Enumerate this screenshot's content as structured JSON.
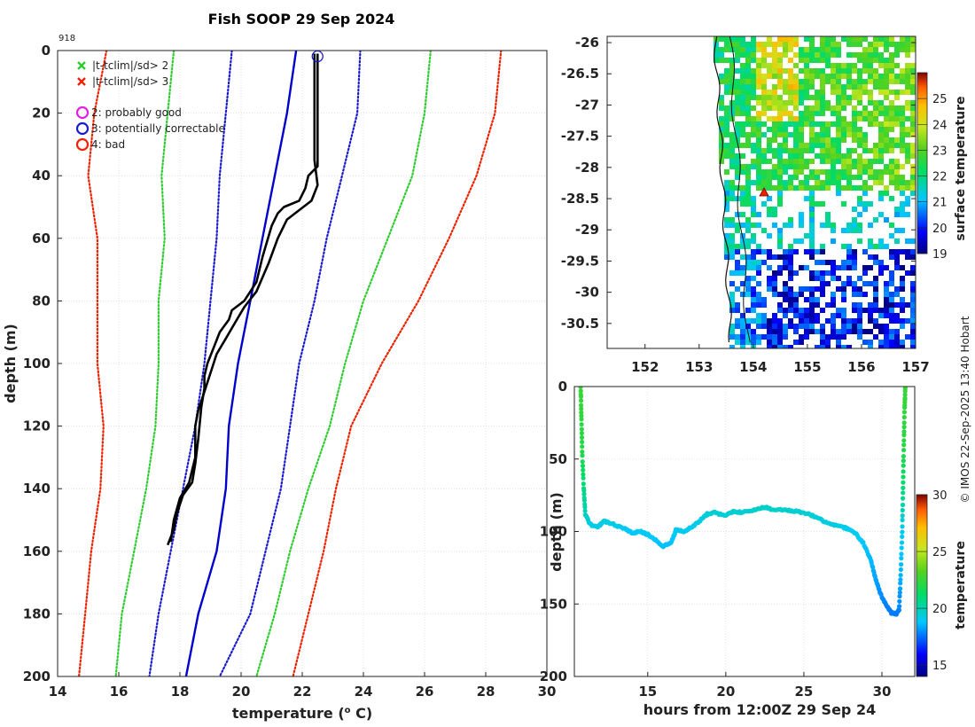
{
  "title": "Fish SOOP 29 Sep 2024",
  "profile_id": "918",
  "credit": "© IMOS 22-Sep-2025 13:40 Hobart",
  "legend": {
    "x_green": "|t-tclim|/sd> 2",
    "x_red": "|t-tclim|/sd> 3",
    "c_magenta": "2: probably good",
    "c_blue": "3: potentially correctable",
    "c_red": "4: bad"
  },
  "colors": {
    "sd2": "#2ecc2e",
    "sd3": "#ee2200",
    "clim": "#0000cc",
    "profile": "#000000",
    "qc_marker": "#1a1ad0",
    "float_marker": "#ee2200"
  },
  "chart_data": [
    {
      "id": "profile",
      "type": "line",
      "title": "Fish SOOP 29 Sep 2024",
      "xlabel": "temperature (",
      "xlabel_unit": "o",
      "xlabel_end": " C)",
      "ylabel": "depth (m)",
      "xlim": [
        14,
        30
      ],
      "ylim": [
        0,
        200
      ],
      "y_reversed": true,
      "xticks": [
        14,
        16,
        18,
        20,
        22,
        24,
        26,
        28,
        30
      ],
      "yticks": [
        0,
        20,
        40,
        60,
        80,
        100,
        120,
        140,
        160,
        180,
        200
      ],
      "series": [
        {
          "name": "clim -3sd",
          "style": "dotted",
          "color": "#ee2200",
          "points": [
            [
              15.6,
              0
            ],
            [
              15.2,
              20
            ],
            [
              15.0,
              40
            ],
            [
              15.3,
              60
            ],
            [
              15.3,
              80
            ],
            [
              15.3,
              100
            ],
            [
              15.5,
              120
            ],
            [
              15.4,
              140
            ],
            [
              15.1,
              160
            ],
            [
              14.9,
              180
            ],
            [
              14.7,
              200
            ]
          ]
        },
        {
          "name": "clim -2sd",
          "style": "dotted",
          "color": "#2ecc2e",
          "points": [
            [
              17.8,
              0
            ],
            [
              17.6,
              20
            ],
            [
              17.4,
              40
            ],
            [
              17.5,
              60
            ],
            [
              17.3,
              80
            ],
            [
              17.3,
              100
            ],
            [
              17.2,
              120
            ],
            [
              16.9,
              140
            ],
            [
              16.5,
              160
            ],
            [
              16.1,
              180
            ],
            [
              15.9,
              200
            ]
          ]
        },
        {
          "name": "clim -1sd",
          "style": "dotted",
          "color": "#1a1ad0",
          "points": [
            [
              19.7,
              0
            ],
            [
              19.5,
              20
            ],
            [
              19.3,
              40
            ],
            [
              19.2,
              60
            ],
            [
              19.0,
              80
            ],
            [
              18.8,
              100
            ],
            [
              18.5,
              120
            ],
            [
              18.1,
              140
            ],
            [
              17.7,
              160
            ],
            [
              17.3,
              180
            ],
            [
              17.0,
              200
            ]
          ]
        },
        {
          "name": "climatology",
          "style": "solid",
          "color": "#0000cc",
          "points": [
            [
              21.8,
              0
            ],
            [
              21.5,
              20
            ],
            [
              21.1,
              40
            ],
            [
              20.7,
              60
            ],
            [
              20.3,
              80
            ],
            [
              19.9,
              100
            ],
            [
              19.6,
              120
            ],
            [
              19.5,
              140
            ],
            [
              19.2,
              160
            ],
            [
              18.6,
              180
            ],
            [
              18.2,
              200
            ]
          ]
        },
        {
          "name": "clim +1sd",
          "style": "dotted",
          "color": "#1a1ad0",
          "points": [
            [
              23.9,
              0
            ],
            [
              23.8,
              20
            ],
            [
              23.3,
              40
            ],
            [
              22.8,
              60
            ],
            [
              22.4,
              80
            ],
            [
              21.9,
              100
            ],
            [
              21.6,
              120
            ],
            [
              21.3,
              140
            ],
            [
              20.8,
              160
            ],
            [
              20.3,
              180
            ],
            [
              19.3,
              200
            ]
          ]
        },
        {
          "name": "clim +2sd",
          "style": "dotted",
          "color": "#2ecc2e",
          "points": [
            [
              26.2,
              0
            ],
            [
              26.0,
              20
            ],
            [
              25.6,
              40
            ],
            [
              24.8,
              60
            ],
            [
              24.0,
              80
            ],
            [
              23.4,
              100
            ],
            [
              22.9,
              120
            ],
            [
              22.2,
              140
            ],
            [
              21.6,
              160
            ],
            [
              21.1,
              180
            ],
            [
              20.5,
              200
            ]
          ]
        },
        {
          "name": "clim +3sd",
          "style": "dotted",
          "color": "#ee2200",
          "points": [
            [
              28.5,
              0
            ],
            [
              28.3,
              20
            ],
            [
              27.7,
              40
            ],
            [
              26.8,
              60
            ],
            [
              25.8,
              80
            ],
            [
              24.6,
              100
            ],
            [
              23.6,
              120
            ],
            [
              23.1,
              140
            ],
            [
              22.7,
              160
            ],
            [
              22.2,
              180
            ],
            [
              21.7,
              200
            ]
          ]
        },
        {
          "name": "profile down",
          "style": "solid",
          "color": "#000000",
          "points": [
            [
              22.5,
              1
            ],
            [
              22.5,
              10
            ],
            [
              22.5,
              20
            ],
            [
              22.5,
              30
            ],
            [
              22.5,
              37
            ],
            [
              22.2,
              40
            ],
            [
              22.1,
              44
            ],
            [
              21.9,
              48
            ],
            [
              21.4,
              50
            ],
            [
              21.2,
              52
            ],
            [
              21.0,
              56
            ],
            [
              20.7,
              66
            ],
            [
              20.5,
              74
            ],
            [
              20.1,
              80
            ],
            [
              19.7,
              83
            ],
            [
              19.6,
              86
            ],
            [
              19.3,
              90
            ],
            [
              19.1,
              95
            ],
            [
              18.9,
              100
            ],
            [
              18.8,
              104
            ],
            [
              18.8,
              108
            ],
            [
              18.7,
              114
            ],
            [
              18.6,
              124
            ],
            [
              18.5,
              132
            ],
            [
              18.4,
              138
            ],
            [
              18.1,
              142
            ],
            [
              17.9,
              148
            ],
            [
              17.8,
              153
            ],
            [
              17.6,
              158
            ]
          ]
        },
        {
          "name": "profile up",
          "style": "solid",
          "color": "#000000",
          "points": [
            [
              17.7,
              157
            ],
            [
              17.8,
              150
            ],
            [
              18.0,
              143
            ],
            [
              18.3,
              138
            ],
            [
              18.5,
              130
            ],
            [
              18.5,
              120
            ],
            [
              18.6,
              115
            ],
            [
              18.8,
              109
            ],
            [
              19.0,
              103
            ],
            [
              19.2,
              97
            ],
            [
              19.5,
              92
            ],
            [
              19.8,
              87
            ],
            [
              20.1,
              82
            ],
            [
              20.5,
              77
            ],
            [
              20.9,
              68
            ],
            [
              21.2,
              60
            ],
            [
              21.5,
              54
            ],
            [
              22.3,
              48
            ],
            [
              22.5,
              43
            ],
            [
              22.4,
              35
            ],
            [
              22.4,
              20
            ],
            [
              22.4,
              10
            ],
            [
              22.4,
              1
            ]
          ]
        }
      ],
      "qc_marker": {
        "temp": 22.5,
        "depth": 1
      }
    },
    {
      "id": "map",
      "type": "heatmap",
      "xlim": [
        151.3,
        157.0
      ],
      "ylim": [
        -30.9,
        -25.9
      ],
      "xticks": [
        152,
        153,
        154,
        155,
        156,
        157
      ],
      "yticks": [
        -26,
        -26.5,
        -27,
        -27.5,
        -28,
        -28.5,
        -29,
        -29.5,
        -30,
        -30.5
      ],
      "clim": [
        19,
        26
      ],
      "colorbar_label": "surface temperature",
      "colorbar_ticks": [
        19,
        20,
        21,
        22,
        23,
        24,
        25
      ],
      "marker": {
        "lon": 154.2,
        "lat": -28.4
      }
    },
    {
      "id": "timeseries",
      "type": "scatter",
      "xlabel": "hours from 12:00Z 29 Sep 24",
      "ylabel": "depth (m)",
      "xlim": [
        10.3,
        32.1
      ],
      "ylim": [
        0,
        200
      ],
      "y_reversed": true,
      "xticks": [
        15,
        20,
        25,
        30
      ],
      "yticks": [
        0,
        50,
        100,
        150,
        200
      ],
      "clim": [
        14,
        30
      ],
      "colorbar_label": "temperature",
      "colorbar_ticks": [
        15,
        20,
        25,
        30
      ],
      "points": [
        [
          10.7,
          0,
          22.5
        ],
        [
          10.75,
          20,
          22.4
        ],
        [
          10.8,
          45,
          22.0
        ],
        [
          10.9,
          70,
          20.8
        ],
        [
          11.0,
          88,
          19.9
        ],
        [
          11.3,
          95,
          19.2
        ],
        [
          11.8,
          97,
          19.1
        ],
        [
          12.2,
          93,
          19.3
        ],
        [
          12.8,
          95,
          19.2
        ],
        [
          13.5,
          98,
          19.0
        ],
        [
          14.0,
          101,
          18.9
        ],
        [
          14.5,
          100,
          18.9
        ],
        [
          15.0,
          102,
          18.9
        ],
        [
          15.5,
          106,
          18.8
        ],
        [
          16.0,
          110,
          18.7
        ],
        [
          16.5,
          108,
          18.7
        ],
        [
          16.8,
          99,
          19.0
        ],
        [
          17.3,
          100,
          19.0
        ],
        [
          17.8,
          97,
          19.1
        ],
        [
          18.3,
          93,
          19.2
        ],
        [
          18.8,
          88,
          19.4
        ],
        [
          19.3,
          87,
          19.5
        ],
        [
          20.0,
          89,
          19.4
        ],
        [
          20.5,
          86,
          19.5
        ],
        [
          21.0,
          87,
          19.5
        ],
        [
          21.8,
          85,
          19.6
        ],
        [
          22.5,
          83,
          19.7
        ],
        [
          23.0,
          85,
          19.6
        ],
        [
          23.8,
          85,
          19.6
        ],
        [
          24.5,
          86,
          19.5
        ],
        [
          25.3,
          88,
          19.5
        ],
        [
          25.8,
          90,
          19.4
        ],
        [
          26.5,
          94,
          19.3
        ],
        [
          27.2,
          96,
          19.2
        ],
        [
          27.8,
          98,
          19.1
        ],
        [
          28.3,
          101,
          19.0
        ],
        [
          28.8,
          108,
          18.8
        ],
        [
          29.3,
          120,
          18.6
        ],
        [
          29.6,
          133,
          18.3
        ],
        [
          29.9,
          143,
          18.0
        ],
        [
          30.3,
          151,
          17.8
        ],
        [
          30.6,
          156,
          17.7
        ],
        [
          30.9,
          157,
          17.7
        ],
        [
          31.1,
          154,
          17.8
        ],
        [
          31.2,
          130,
          18.5
        ],
        [
          31.3,
          100,
          19.0
        ],
        [
          31.35,
          70,
          20.9
        ],
        [
          31.4,
          40,
          22.2
        ],
        [
          31.45,
          15,
          22.4
        ],
        [
          31.5,
          0,
          22.5
        ]
      ]
    }
  ]
}
